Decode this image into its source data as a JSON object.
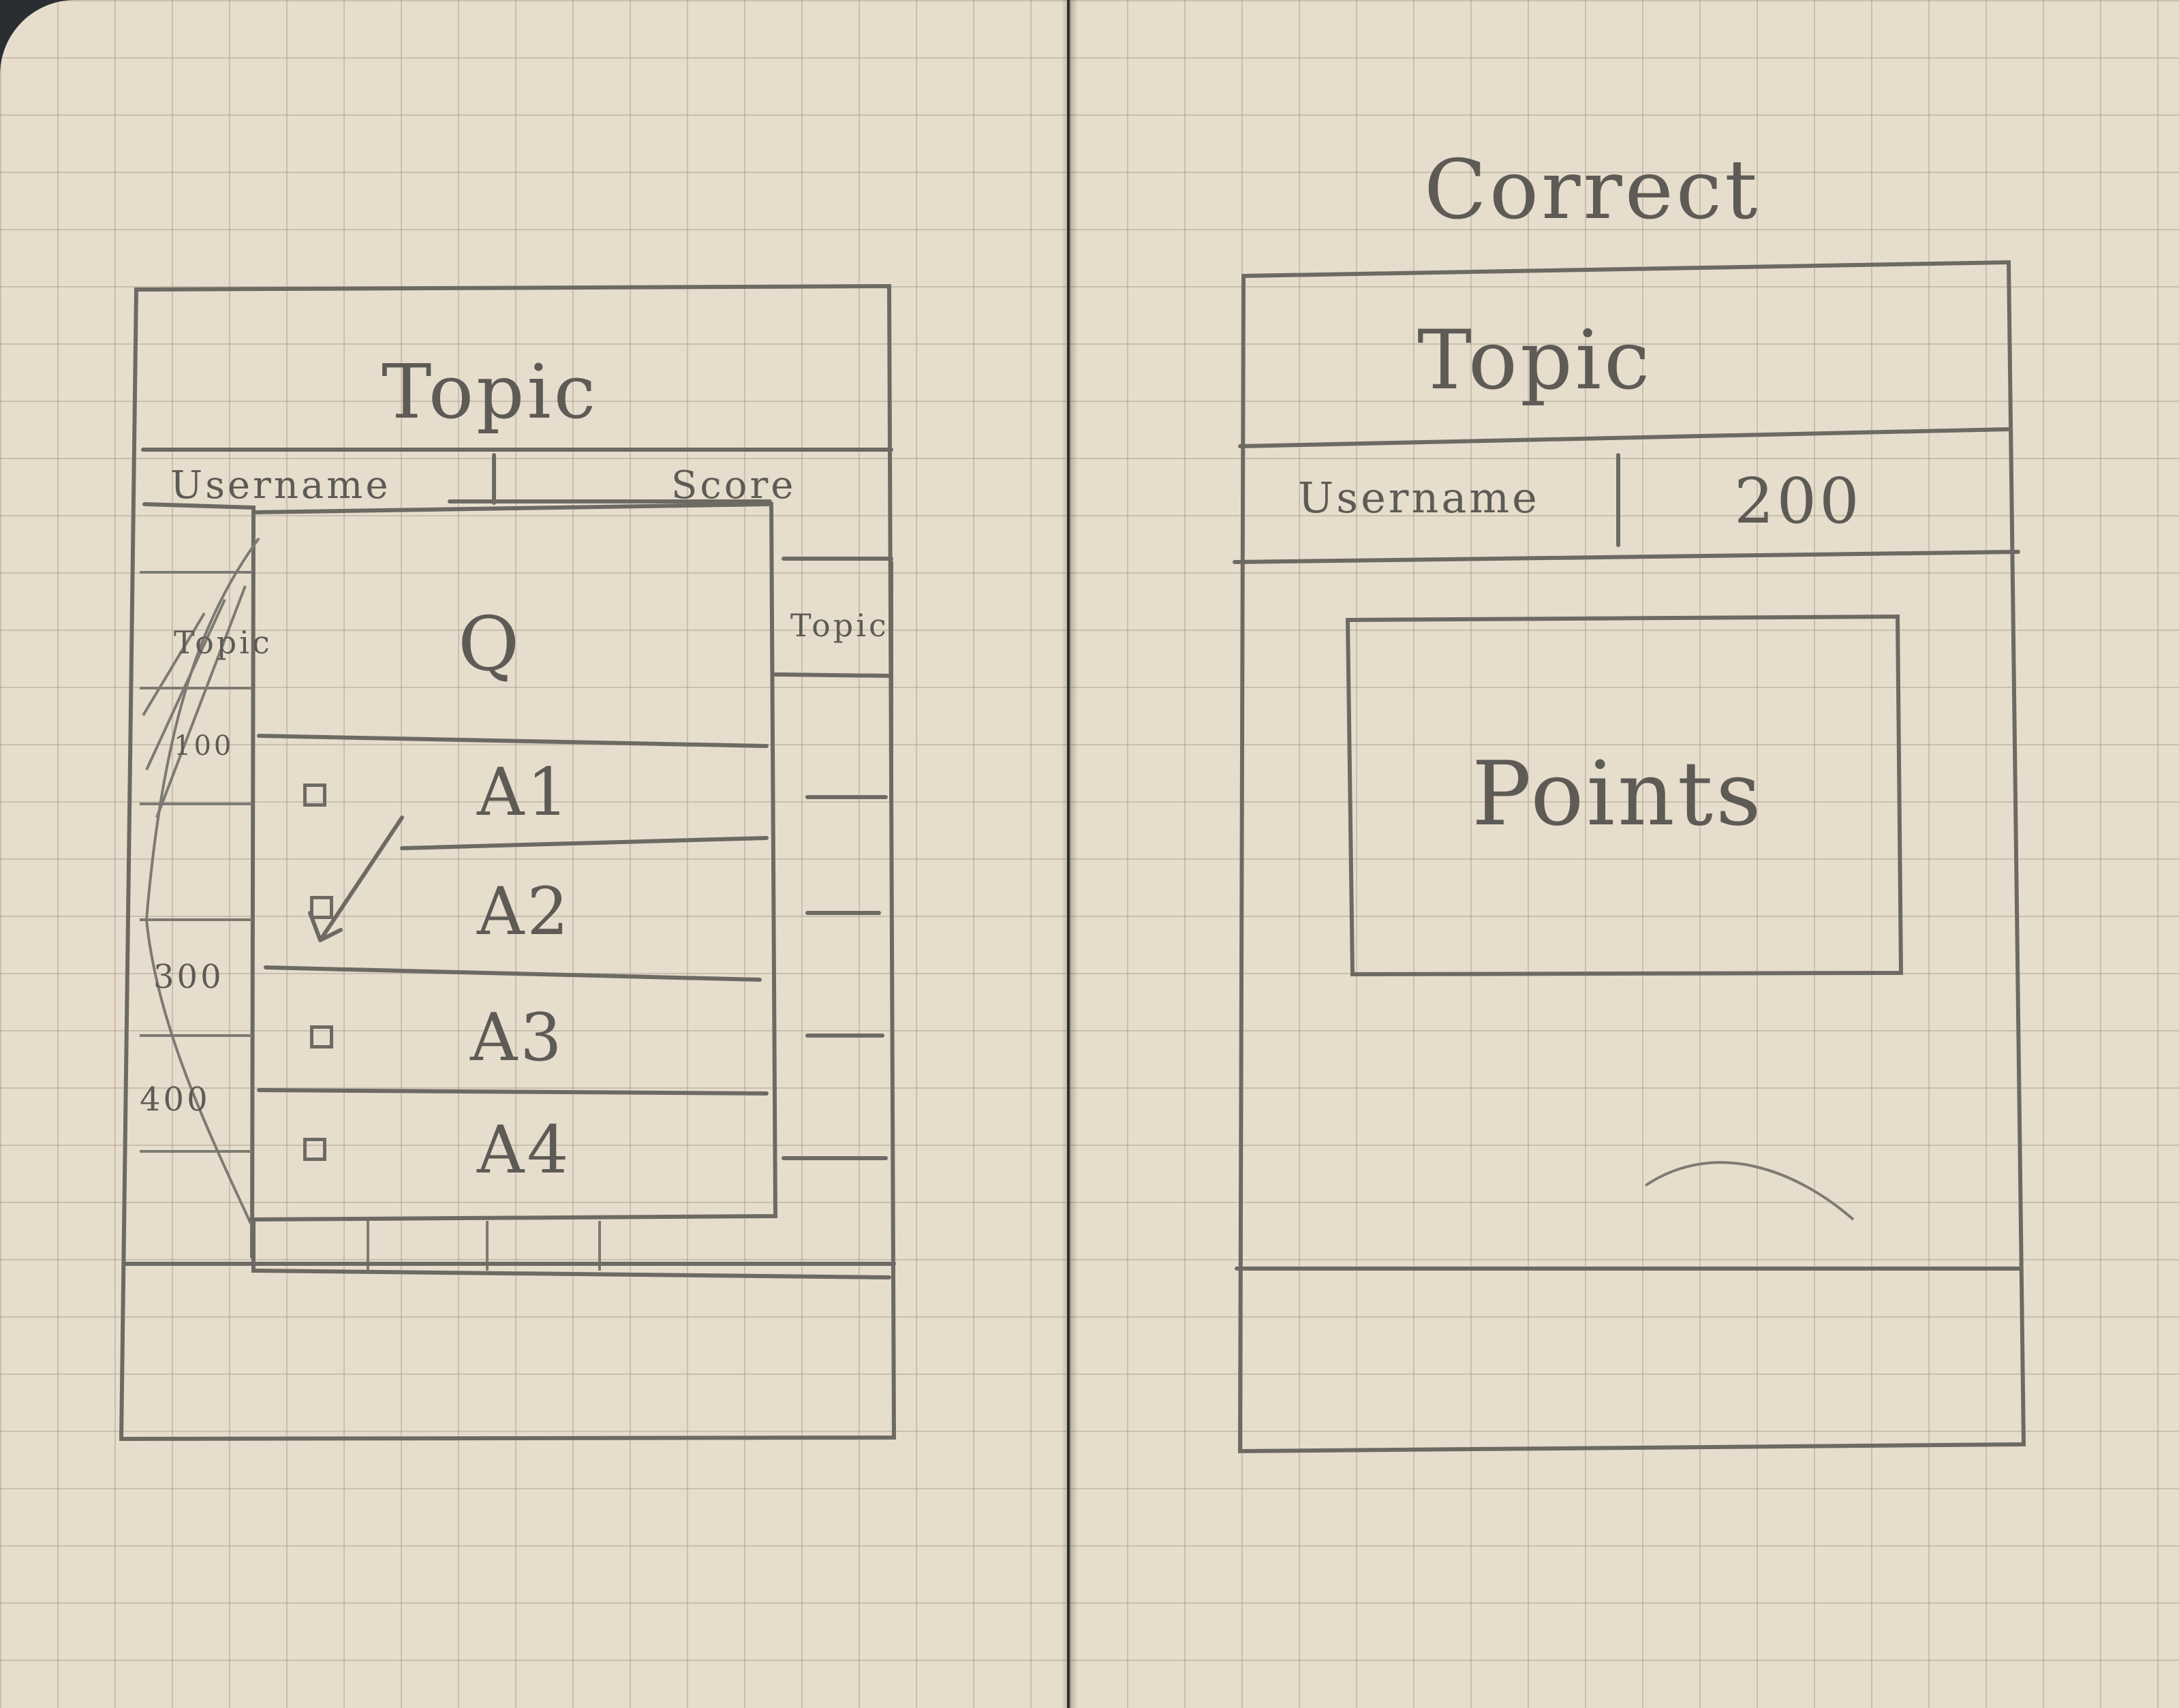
{
  "left_screen": {
    "header_title": "Topic",
    "username_label": "Username",
    "score_label": "Score",
    "left_sidebar": {
      "topic_label": "Topic",
      "values": [
        "100",
        "300",
        "400"
      ]
    },
    "right_sidebar": {
      "topic_label": "Topic"
    },
    "question_label": "Q",
    "answers": [
      {
        "label": "A1",
        "checked": false
      },
      {
        "label": "A2",
        "checked": true
      },
      {
        "label": "A3",
        "checked": false
      },
      {
        "label": "A4",
        "checked": false
      }
    ]
  },
  "right_screen": {
    "title": "Correct",
    "header_title": "Topic",
    "username_label": "Username",
    "score_value": "200",
    "points_label": "Points"
  }
}
